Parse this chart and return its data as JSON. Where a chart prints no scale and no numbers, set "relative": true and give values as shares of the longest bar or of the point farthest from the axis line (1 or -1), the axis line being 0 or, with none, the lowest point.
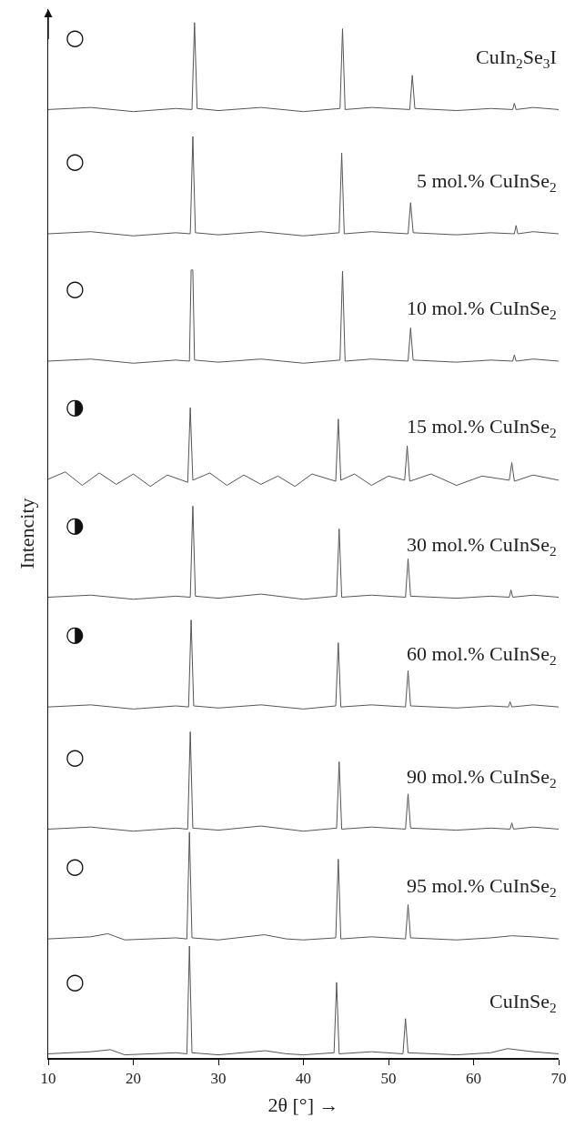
{
  "chart_data": {
    "type": "line",
    "relative": true,
    "xlabel": "2θ [°] →",
    "ylabel": "Intencity",
    "xlim": [
      10,
      70
    ],
    "xticks": [
      10,
      20,
      30,
      40,
      50,
      60,
      70
    ],
    "tick_labels": "x",
    "grid": false,
    "legend": false,
    "marker": "none",
    "line_style": "solid",
    "series": [
      {
        "name": "CuIn$_{2}$Se$_{3}$I",
        "color": "#555555",
        "x": [
          10,
          15,
          20,
          25,
          26.9,
          27.2,
          27.5,
          30,
          35,
          40,
          44.3,
          44.6,
          44.9,
          48,
          52.5,
          52.8,
          53.1,
          58,
          62,
          64.6,
          64.8,
          65.0,
          67,
          70
        ],
        "values": [
          0.916,
          0.918,
          0.914,
          0.917,
          0.916,
          1.0,
          0.917,
          0.915,
          0.918,
          0.914,
          0.917,
          0.994,
          0.916,
          0.918,
          0.916,
          0.949,
          0.917,
          0.915,
          0.917,
          0.916,
          0.922,
          0.916,
          0.918,
          0.916
        ]
      },
      {
        "name": "5 mol.% CuInSe$_{2}$",
        "color": "#555555",
        "x": [
          10,
          15,
          20,
          25,
          26.7,
          27.0,
          27.3,
          30,
          35,
          40,
          44.2,
          44.5,
          44.8,
          48,
          52.3,
          52.6,
          52.9,
          58,
          62,
          64.8,
          65.0,
          65.2,
          67,
          70
        ],
        "values": [
          0.796,
          0.798,
          0.794,
          0.797,
          0.796,
          0.89,
          0.797,
          0.795,
          0.798,
          0.794,
          0.797,
          0.874,
          0.796,
          0.798,
          0.796,
          0.826,
          0.797,
          0.795,
          0.797,
          0.796,
          0.804,
          0.796,
          0.798,
          0.796
        ]
      },
      {
        "name": "10 mol.% CuInSe$_{2}$",
        "color": "#555555",
        "x": [
          10,
          15,
          20,
          25,
          26.6,
          26.8,
          27.0,
          27.2,
          30,
          35,
          40,
          44.3,
          44.6,
          44.9,
          48,
          52.3,
          52.6,
          52.9,
          58,
          62,
          64.6,
          64.8,
          65.0,
          67,
          70
        ],
        "values": [
          0.673,
          0.675,
          0.671,
          0.674,
          0.673,
          0.761,
          0.761,
          0.674,
          0.672,
          0.675,
          0.671,
          0.674,
          0.76,
          0.673,
          0.675,
          0.673,
          0.705,
          0.674,
          0.672,
          0.674,
          0.673,
          0.679,
          0.673,
          0.675,
          0.673
        ]
      },
      {
        "name": "15 mol.% CuInSe$_{2}$",
        "color": "#555555",
        "x": [
          10,
          12,
          14,
          16,
          18,
          20,
          22,
          24,
          26.4,
          26.7,
          27.0,
          29,
          31,
          33,
          35,
          37,
          39,
          41,
          43.8,
          44.1,
          44.4,
          46,
          48,
          50,
          51.9,
          52.2,
          52.5,
          55,
          58,
          61,
          64.2,
          64.5,
          64.8,
          67,
          70
        ],
        "values": [
          0.559,
          0.566,
          0.553,
          0.565,
          0.554,
          0.564,
          0.552,
          0.563,
          0.556,
          0.628,
          0.558,
          0.565,
          0.553,
          0.563,
          0.554,
          0.562,
          0.552,
          0.564,
          0.557,
          0.617,
          0.558,
          0.564,
          0.553,
          0.562,
          0.558,
          0.591,
          0.557,
          0.564,
          0.553,
          0.562,
          0.558,
          0.575,
          0.557,
          0.563,
          0.558
        ]
      },
      {
        "name": "30 mol.% CuInSe$_{2}$",
        "color": "#555555",
        "x": [
          10,
          15,
          20,
          25,
          26.7,
          27.0,
          27.3,
          30,
          35,
          40,
          43.9,
          44.2,
          44.5,
          48,
          52.0,
          52.3,
          52.6,
          58,
          62,
          64.2,
          64.4,
          64.6,
          67,
          70
        ],
        "values": [
          0.445,
          0.447,
          0.443,
          0.446,
          0.445,
          0.533,
          0.446,
          0.444,
          0.448,
          0.443,
          0.446,
          0.511,
          0.445,
          0.447,
          0.445,
          0.482,
          0.446,
          0.444,
          0.446,
          0.445,
          0.452,
          0.445,
          0.447,
          0.445
        ]
      },
      {
        "name": "60 mol.% CuInSe$_{2}$",
        "color": "#555555",
        "x": [
          10,
          15,
          20,
          25,
          26.5,
          26.8,
          27.1,
          30,
          35,
          40,
          43.8,
          44.1,
          44.4,
          48,
          52.0,
          52.3,
          52.6,
          58,
          62,
          64.1,
          64.3,
          64.5,
          67,
          70
        ],
        "values": [
          0.339,
          0.341,
          0.337,
          0.34,
          0.339,
          0.423,
          0.34,
          0.338,
          0.341,
          0.337,
          0.34,
          0.401,
          0.339,
          0.341,
          0.339,
          0.374,
          0.34,
          0.338,
          0.34,
          0.339,
          0.344,
          0.339,
          0.341,
          0.339
        ]
      },
      {
        "name": "90 mol.% CuInSe$_{2}$",
        "color": "#555555",
        "x": [
          10,
          15,
          20,
          25,
          26.4,
          26.7,
          27.0,
          30,
          35,
          40,
          43.9,
          44.2,
          44.5,
          48,
          52.0,
          52.3,
          52.6,
          58,
          62,
          64.3,
          64.5,
          64.7,
          67,
          70
        ],
        "values": [
          0.221,
          0.223,
          0.219,
          0.222,
          0.221,
          0.315,
          0.222,
          0.22,
          0.224,
          0.219,
          0.222,
          0.286,
          0.221,
          0.223,
          0.221,
          0.255,
          0.222,
          0.22,
          0.222,
          0.221,
          0.227,
          0.221,
          0.223,
          0.221
        ]
      },
      {
        "name": "95 mol.% CuInSe$_{2}$",
        "color": "#555555",
        "x": [
          10,
          15,
          17,
          19,
          25,
          26.3,
          26.6,
          26.9,
          30,
          35.4,
          38,
          40,
          43.8,
          44.1,
          44.4,
          48,
          52.0,
          52.3,
          52.6,
          58,
          62,
          64.5,
          67,
          70
        ],
        "values": [
          0.115,
          0.117,
          0.12,
          0.114,
          0.116,
          0.115,
          0.218,
          0.116,
          0.114,
          0.119,
          0.115,
          0.114,
          0.116,
          0.192,
          0.115,
          0.117,
          0.115,
          0.148,
          0.116,
          0.114,
          0.116,
          0.118,
          0.117,
          0.115
        ]
      },
      {
        "name": "CuInSe$_{2}$",
        "color": "#555555",
        "x": [
          10,
          15,
          17.3,
          19,
          25,
          26.3,
          26.6,
          26.9,
          30,
          35.5,
          38,
          40,
          43.6,
          43.9,
          44.2,
          48,
          51.7,
          52.0,
          52.3,
          58,
          62,
          64,
          67,
          70
        ],
        "values": [
          0.004,
          0.006,
          0.008,
          0.003,
          0.005,
          0.004,
          0.108,
          0.005,
          0.003,
          0.007,
          0.004,
          0.003,
          0.005,
          0.073,
          0.004,
          0.006,
          0.004,
          0.038,
          0.005,
          0.003,
          0.005,
          0.009,
          0.006,
          0.004
        ]
      }
    ],
    "annotations": [
      "○",
      "○",
      "○",
      "◑",
      "◑",
      "◑",
      "○",
      "○",
      "○"
    ]
  }
}
